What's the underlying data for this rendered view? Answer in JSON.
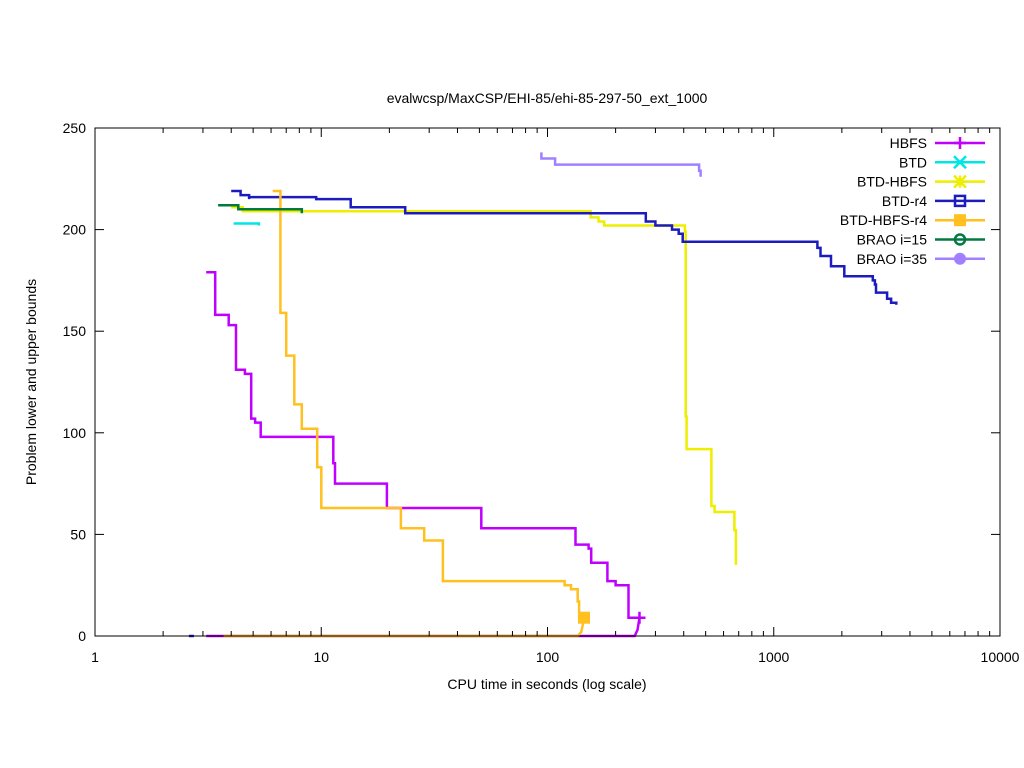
{
  "chart_data": {
    "type": "line",
    "title": "evalwcsp/MaxCSP/EHI-85/ehi-85-297-50_ext_1000",
    "xlabel": "CPU time in seconds (log scale)",
    "ylabel": "Problem lower and upper bounds",
    "xscale": "log",
    "xlim": [
      1,
      10000
    ],
    "ylim": [
      0,
      250
    ],
    "xticks": [
      1,
      10,
      100,
      1000,
      10000
    ],
    "xtick_labels": [
      "1",
      "10",
      "100",
      "1000",
      "10000"
    ],
    "yticks": [
      0,
      50,
      100,
      150,
      200,
      250
    ],
    "ytick_labels": [
      "0",
      "50",
      "100",
      "150",
      "200",
      "250"
    ],
    "legend_position": "top-right",
    "grid": false,
    "series": [
      {
        "name": "HBFS",
        "color": "#c000ff",
        "marker": "plus",
        "upper": [
          [
            3.1,
            179
          ],
          [
            3.4,
            179
          ],
          [
            3.4,
            158
          ],
          [
            3.9,
            158
          ],
          [
            3.9,
            153
          ],
          [
            4.2,
            153
          ],
          [
            4.2,
            131
          ],
          [
            4.6,
            131
          ],
          [
            4.6,
            129
          ],
          [
            4.9,
            129
          ],
          [
            4.9,
            107
          ],
          [
            5.1,
            107
          ],
          [
            5.1,
            105
          ],
          [
            5.4,
            105
          ],
          [
            5.4,
            98
          ],
          [
            11.3,
            98
          ],
          [
            11.3,
            85
          ],
          [
            11.5,
            85
          ],
          [
            11.5,
            75
          ],
          [
            19.5,
            75
          ],
          [
            19.5,
            63
          ],
          [
            51,
            63
          ],
          [
            51,
            53
          ],
          [
            133,
            53
          ],
          [
            133,
            45
          ],
          [
            152,
            45
          ],
          [
            152,
            43
          ],
          [
            156,
            43
          ],
          [
            156,
            36
          ],
          [
            184,
            36
          ],
          [
            184,
            27
          ],
          [
            200,
            27
          ],
          [
            200,
            25
          ],
          [
            228,
            25
          ],
          [
            228,
            9
          ],
          [
            255,
            9
          ]
        ],
        "lower": [
          [
            3.1,
            0
          ],
          [
            3.7,
            0
          ],
          [
            136,
            0
          ],
          [
            225,
            0
          ],
          [
            243,
            0
          ],
          [
            250,
            3
          ],
          [
            255,
            9
          ]
        ],
        "marker_points": [
          [
            255,
            9
          ]
        ]
      },
      {
        "name": "BTD",
        "color": "#00e6e6",
        "marker": "x",
        "upper": [
          [
            4.1,
            203
          ],
          [
            5.3,
            203
          ],
          [
            5.3,
            202
          ]
        ],
        "lower": [],
        "marker_points": []
      },
      {
        "name": "BTD-HBFS",
        "color": "#eeee00",
        "marker": "asterisk",
        "upper": [
          [
            4.0,
            211
          ],
          [
            4.5,
            211
          ],
          [
            4.5,
            209
          ],
          [
            155,
            209
          ],
          [
            155,
            206
          ],
          [
            168,
            206
          ],
          [
            168,
            204
          ],
          [
            178,
            204
          ],
          [
            178,
            202
          ],
          [
            405,
            202
          ],
          [
            405,
            199
          ],
          [
            408,
            199
          ],
          [
            408,
            108
          ],
          [
            412,
            108
          ],
          [
            412,
            92
          ],
          [
            530,
            92
          ],
          [
            530,
            64
          ],
          [
            548,
            64
          ],
          [
            548,
            61
          ],
          [
            670,
            61
          ],
          [
            670,
            52
          ],
          [
            680,
            52
          ],
          [
            680,
            35
          ]
        ],
        "lower": [],
        "marker_points": []
      },
      {
        "name": "BTD-r4",
        "color": "#1c1cbe",
        "marker": "box",
        "upper": [
          [
            4.0,
            219
          ],
          [
            4.4,
            219
          ],
          [
            4.4,
            217
          ],
          [
            4.8,
            217
          ],
          [
            4.8,
            215
          ],
          [
            4.8,
            216
          ],
          [
            9.5,
            216
          ],
          [
            9.5,
            215
          ],
          [
            13.5,
            215
          ],
          [
            13.5,
            211
          ],
          [
            23.5,
            211
          ],
          [
            23.5,
            208
          ],
          [
            272,
            208
          ],
          [
            272,
            204
          ],
          [
            300,
            204
          ],
          [
            300,
            202
          ],
          [
            355,
            202
          ],
          [
            355,
            200
          ],
          [
            380,
            200
          ],
          [
            380,
            198
          ],
          [
            396,
            198
          ],
          [
            396,
            194
          ],
          [
            1560,
            194
          ],
          [
            1560,
            191
          ],
          [
            1610,
            191
          ],
          [
            1610,
            187
          ],
          [
            1790,
            187
          ],
          [
            1790,
            182
          ],
          [
            2050,
            182
          ],
          [
            2050,
            177
          ],
          [
            2740,
            177
          ],
          [
            2740,
            175
          ],
          [
            2800,
            175
          ],
          [
            2800,
            173
          ],
          [
            2830,
            173
          ],
          [
            2830,
            169
          ],
          [
            3170,
            169
          ],
          [
            3170,
            166
          ],
          [
            3300,
            166
          ],
          [
            3300,
            164
          ],
          [
            3480,
            164
          ],
          [
            3480,
            163
          ]
        ],
        "lower": [
          [
            2.6,
            0
          ]
        ],
        "marker_points": []
      },
      {
        "name": "BTD-HBFS-r4",
        "color": "#ffc020",
        "marker": "filled-box",
        "upper": [
          [
            6.1,
            219
          ],
          [
            6.6,
            219
          ],
          [
            6.6,
            159
          ],
          [
            7.0,
            159
          ],
          [
            7.0,
            138
          ],
          [
            7.6,
            138
          ],
          [
            7.6,
            114
          ],
          [
            8.2,
            114
          ],
          [
            8.2,
            102
          ],
          [
            9.6,
            102
          ],
          [
            9.6,
            83
          ],
          [
            10.0,
            83
          ],
          [
            10.0,
            63
          ],
          [
            22.5,
            63
          ],
          [
            22.5,
            53
          ],
          [
            28.5,
            53
          ],
          [
            28.5,
            47
          ],
          [
            34.5,
            47
          ],
          [
            34.5,
            27
          ],
          [
            119,
            27
          ],
          [
            119,
            25
          ],
          [
            127,
            25
          ],
          [
            127,
            23
          ],
          [
            136,
            23
          ],
          [
            136,
            17
          ],
          [
            138,
            17
          ],
          [
            138,
            9
          ],
          [
            145,
            9
          ]
        ],
        "lower": [
          [
            3.7,
            0
          ],
          [
            136,
            0
          ],
          [
            141,
            2
          ],
          [
            143,
            5
          ],
          [
            145,
            9
          ]
        ],
        "marker_points": [
          [
            145,
            9
          ]
        ]
      },
      {
        "name": "BRAO i=15",
        "color": "#007a40",
        "marker": "open-circle",
        "upper": [
          [
            3.5,
            212
          ],
          [
            4.3,
            212
          ],
          [
            4.3,
            210
          ],
          [
            8.2,
            210
          ],
          [
            8.2,
            208
          ]
        ],
        "lower": [],
        "marker_points": []
      },
      {
        "name": "BRAO i=35",
        "color": "#a080ff",
        "marker": "filled-circle",
        "upper": [
          [
            94,
            238
          ],
          [
            94,
            235
          ],
          [
            108,
            235
          ],
          [
            108,
            232
          ],
          [
            468,
            232
          ],
          [
            468,
            229
          ],
          [
            475,
            229
          ],
          [
            475,
            226
          ]
        ],
        "lower": [],
        "marker_points": []
      }
    ]
  }
}
